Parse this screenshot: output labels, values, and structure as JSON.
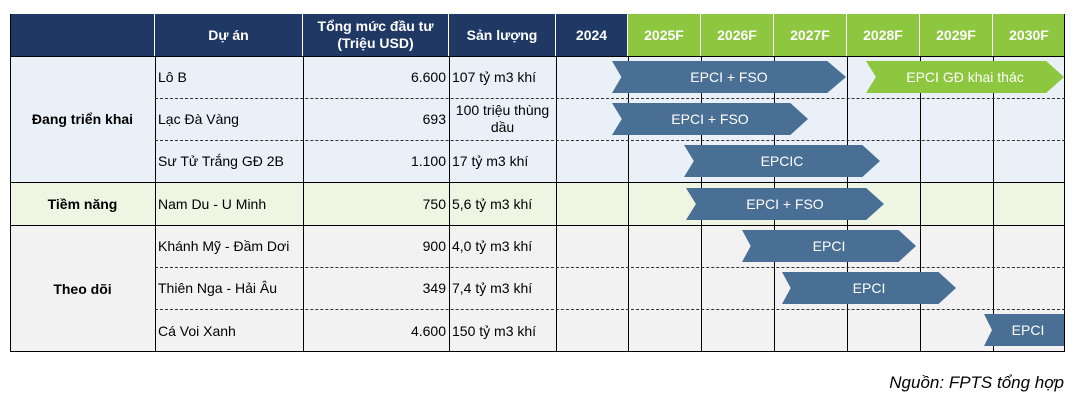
{
  "table": {
    "headers": {
      "project": "Dự án",
      "capital": "Tổng mức đầu tư\n(Triệu USD)",
      "output": "Sản lượng",
      "years": [
        "2024",
        "2025F",
        "2026F",
        "2027F",
        "2028F",
        "2029F",
        "2030F"
      ]
    },
    "groups": [
      {
        "label": "Đang triển khai",
        "bg": "#eaf0f8"
      },
      {
        "label": "Tiềm năng",
        "bg": "#eef5e2"
      },
      {
        "label": "Theo dõi",
        "bg": "#f2f2f2"
      }
    ],
    "rows": [
      {
        "name": "Lô B",
        "capital": "6.600",
        "output": "107 tỷ m3 khí"
      },
      {
        "name": "Lạc Đà Vàng",
        "capital": "693",
        "output": "100 triệu thùng dầu"
      },
      {
        "name": "Sư Tử Trắng GĐ 2B",
        "capital": "1.100",
        "output": "17 tỷ m3 khí"
      },
      {
        "name": "Nam Du - U Minh",
        "capital": "750",
        "output": "5,6 tỷ m3 khí"
      },
      {
        "name": "Khánh Mỹ - Đầm Dơi",
        "capital": "900",
        "output": "4,0 tỷ m3 khí"
      },
      {
        "name": "Thiên Nga - Hải Âu",
        "capital": "349",
        "output": "7,4 tỷ m3 khí"
      },
      {
        "name": "Cá Voi Xanh",
        "capital": "4.600",
        "output": "150 tỷ m3 khí"
      }
    ],
    "timeline_bars": [
      {
        "row": 0,
        "label": "EPCI + FSO",
        "start": "2025F",
        "end": "2027F",
        "color": "#4a6f95"
      },
      {
        "row": 0,
        "label": "EPCI GĐ khai thác",
        "start": "2028F",
        "end": "2030F",
        "color": "#8dc63f"
      },
      {
        "row": 1,
        "label": "EPCI + FSO",
        "start": "2025F",
        "end": "2027F",
        "color": "#4a6f95"
      },
      {
        "row": 2,
        "label": "EPCIC",
        "start": "2026F",
        "end": "2027F",
        "color": "#4a6f95"
      },
      {
        "row": 3,
        "label": "EPCI + FSO",
        "start": "2026F",
        "end": "2027F",
        "color": "#4a6f95"
      },
      {
        "row": 4,
        "label": "EPCI",
        "start": "2026F",
        "end": "2028F",
        "color": "#4a6f95"
      },
      {
        "row": 5,
        "label": "EPCI",
        "start": "2027F",
        "end": "2029F",
        "color": "#4a6f95"
      },
      {
        "row": 6,
        "label": "EPCI",
        "start": "2030F",
        "end": "2030F",
        "color": "#4a6f95"
      }
    ]
  },
  "source": "Nguồn: FPTS tổng hợp"
}
